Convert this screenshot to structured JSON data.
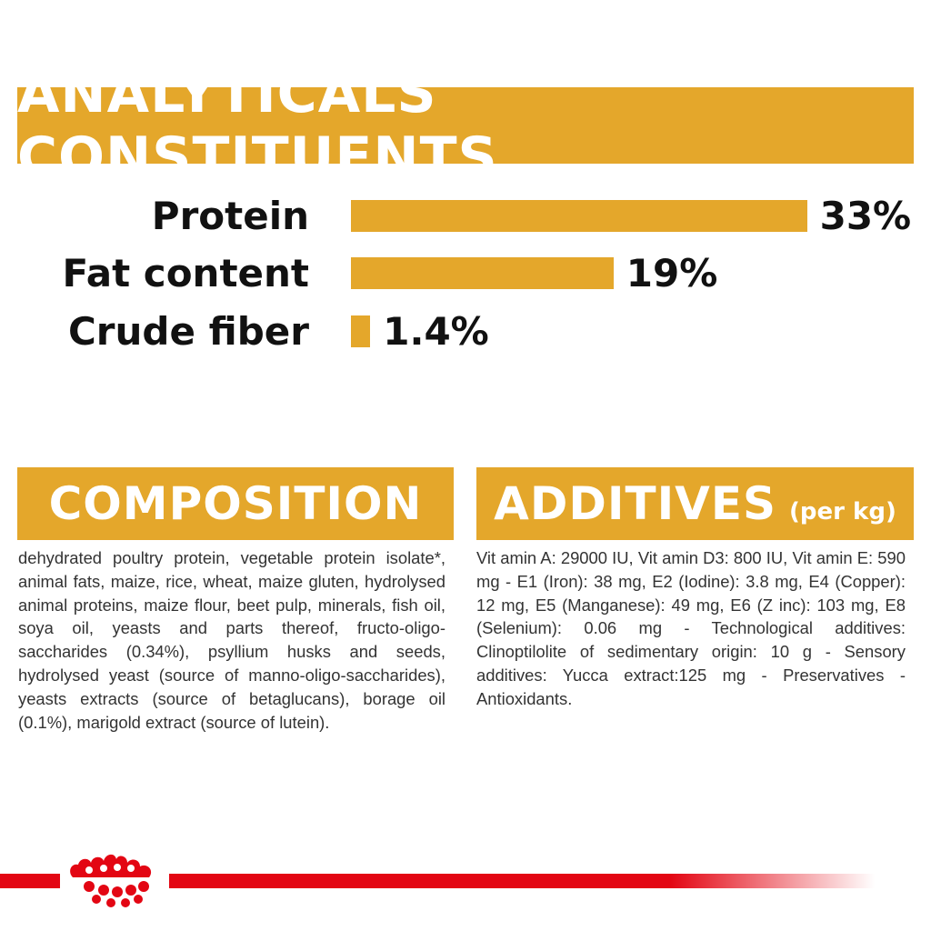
{
  "analytics": {
    "title": "ANALYTICALS CONSTITUENTS",
    "rows": [
      {
        "label": "Protein",
        "value_text": "33%",
        "percent": 33
      },
      {
        "label": "Fat content",
        "value_text": "19%",
        "percent": 19
      },
      {
        "label": "Crude fiber",
        "value_text": "1.4%",
        "percent": 1.4
      }
    ]
  },
  "composition": {
    "title": "COMPOSITION",
    "text": "dehydrated poultry protein, vegetable protein isolate*, animal fats, maize, rice, wheat, maize gluten, hydrolysed animal proteins, maize flour, beet pulp, minerals, fish oil, soya oil, yeasts and parts thereof, fructo-oligo-saccharides (0.34%), psyllium husks and seeds, hydrolysed yeast (source of manno-oligo-saccharides), yeasts extracts (source of betaglucans), borage oil (0.1%), marigold extract (source of lutein)."
  },
  "additives": {
    "title": "ADDITIVES",
    "subtitle": "(per kg)",
    "text": "Vit amin A: 29000 IU, Vit amin D3: 800 IU, Vit amin E: 590 mg - E1 (Iron): 38 mg, E2 (Iodine): 3.8 mg, E4 (Copper): 12 mg, E5 (Manganese): 49 mg, E6 (Z inc): 103 mg, E8 (Selenium): 0.06 mg - Technological additives: Clinoptilolite of sedimentary origin: 10 g - Sensory additives: Yucca extract:125 mg - Preservatives - Antioxidants."
  },
  "colors": {
    "accent": "#e4a72b",
    "brand_red": "#e30613",
    "text": "#111111"
  },
  "icons": {
    "logo": "crown-logo-icon"
  }
}
